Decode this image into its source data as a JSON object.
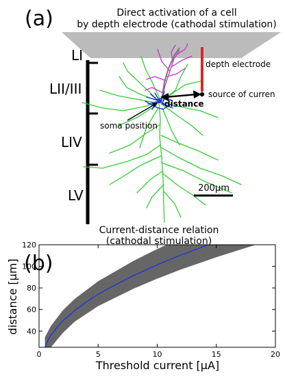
{
  "panel_a": {
    "label": "(a)",
    "title_line1": "Direct activation of a cell",
    "title_line2": "by depth electrode (cathodal stimulation)",
    "layers": [
      "LI",
      "LII/III",
      "LIV",
      "LV"
    ],
    "electrode_label": "depth electrode",
    "source_label": "source of curren",
    "distance_label": "distance",
    "soma_label": "soma position",
    "scalebar_label": "200μm",
    "colors": {
      "surface": "#bbbbbb",
      "electrode": "#d62728",
      "dendrites": "#33cc33",
      "axon": "#cc33cc",
      "soma": "#2233dd"
    }
  },
  "panel_b": {
    "label": "(b)",
    "title_line1": "Current-distance relation",
    "title_line2": "(cathodal stimulation)",
    "xlabel": "Threshold current [μA]",
    "ylabel": "distance [μm]"
  },
  "chart_data": {
    "type": "area",
    "title": "Current-distance relation (cathodal stimulation)",
    "xlabel": "Threshold current [μA]",
    "ylabel": "distance [μm]",
    "xlim": [
      0,
      20
    ],
    "ylim": [
      25,
      120
    ],
    "xticks": [
      0,
      5,
      10,
      15,
      20
    ],
    "yticks": [
      40,
      60,
      80,
      100,
      120
    ],
    "grid": false,
    "series": [
      {
        "kind": "line",
        "color": "#2233dd",
        "x": [
          0.5,
          0.8,
          1,
          1.5,
          2,
          3,
          4,
          5,
          6,
          8,
          10,
          12,
          14,
          15
        ],
        "y": [
          25,
          32.5,
          36.1,
          43.3,
          49.3,
          59.0,
          67.0,
          74.1,
          80.3,
          91.5,
          101.4,
          110.5,
          118.7,
          122.6
        ]
      },
      {
        "kind": "band",
        "color": "#666666",
        "x": [
          0.5,
          1,
          2,
          3,
          5,
          8,
          10,
          12,
          15,
          18,
          20
        ],
        "upper": [
          34.4,
          44.8,
          59.0,
          69.7,
          86.2,
          105.1,
          116.0,
          126.0,
          140.0,
          152.9,
          161.0
        ],
        "lower": [
          25,
          25,
          38.2,
          48.7,
          63.2,
          79.3,
          88.6,
          97.0,
          108.4,
          118.8,
          125.2
        ]
      }
    ]
  }
}
